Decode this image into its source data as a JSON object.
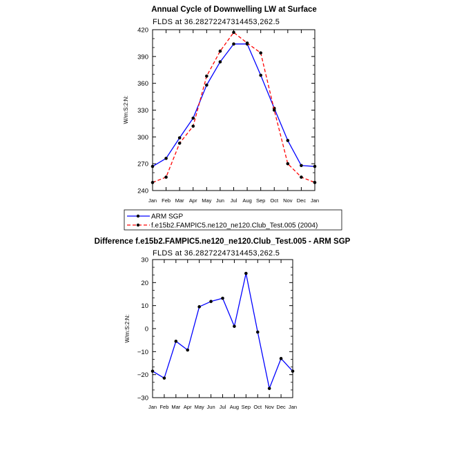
{
  "chart_data": [
    {
      "type": "line",
      "title": "Annual Cycle of Downwelling LW at Surface",
      "subtitle": "FLDS at 36.28272247314453,262.5",
      "ylabel": "W/m:S:2:N:",
      "categories": [
        "Jan",
        "Feb",
        "Mar",
        "Apr",
        "May",
        "Jun",
        "Jul",
        "Aug",
        "Sep",
        "Oct",
        "Nov",
        "Dec",
        "Jan"
      ],
      "ylim": [
        240,
        420
      ],
      "yticks": [
        240,
        270,
        300,
        330,
        360,
        390,
        420
      ],
      "series": [
        {
          "name": "ARM SGP",
          "color": "#0000ff",
          "dash": "solid",
          "values": [
            267,
            276,
            299,
            321,
            358,
            384,
            404,
            404,
            369,
            332,
            296,
            268,
            267
          ]
        },
        {
          "name": "f.e15b2.FAMPIC5.ne120_ne120.Club_Test.005 (2004)",
          "color": "#ff0000",
          "dash": "dashed",
          "values": [
            249,
            255,
            293,
            312,
            368,
            396,
            417,
            405,
            394,
            330,
            270,
            255,
            249
          ]
        }
      ],
      "legend": "bottom"
    },
    {
      "type": "line",
      "title": "Difference f.e15b2.FAMPIC5.ne120_ne120.Club_Test.005 - ARM SGP",
      "subtitle": "FLDS at 36.28272247314453,262.5",
      "ylabel": "W/m:S:2:N:",
      "categories": [
        "Jan",
        "Feb",
        "Mar",
        "Apr",
        "May",
        "Jun",
        "Jul",
        "Aug",
        "Sep",
        "Oct",
        "Nov",
        "Dec",
        "Jan"
      ],
      "ylim": [
        -30,
        30
      ],
      "yticks": [
        -30,
        -20,
        -10,
        0,
        10,
        20,
        30
      ],
      "series": [
        {
          "name": "Difference",
          "color": "#0000ff",
          "dash": "solid",
          "values": [
            -18.5,
            -21.5,
            -5.5,
            -9.3,
            9.5,
            11.8,
            13.2,
            1,
            24,
            -1.5,
            -26,
            -13,
            -18.5
          ]
        }
      ]
    }
  ]
}
